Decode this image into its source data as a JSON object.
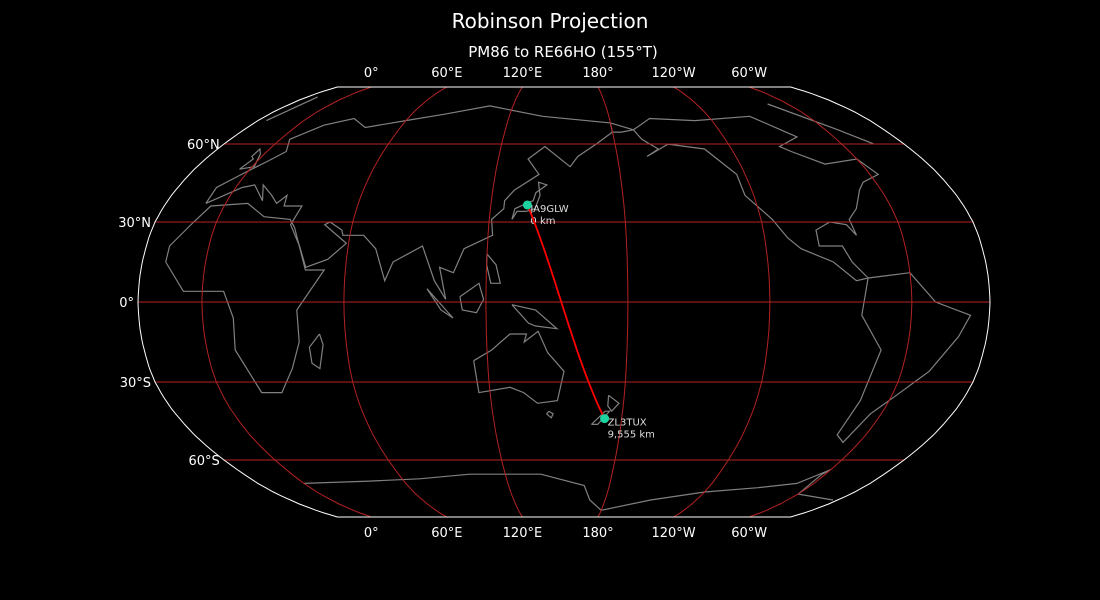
{
  "title": "Robinson Projection",
  "subtitle": "PM86 to RE66HO (155°T)",
  "colors": {
    "background": "#000000",
    "gridlines": "#b22222",
    "coastline": "#808080",
    "border": "#ffffff",
    "path": "#ff0000",
    "marker": "#1dd3a0"
  },
  "central_longitude": 153,
  "lon_ticks": [
    {
      "lon": 0,
      "label": "0°"
    },
    {
      "lon": 60,
      "label": "60°E"
    },
    {
      "lon": 120,
      "label": "120°E"
    },
    {
      "lon": 180,
      "label": "180°"
    },
    {
      "lon": 240,
      "label": "120°W"
    },
    {
      "lon": 300,
      "label": "60°W"
    }
  ],
  "lat_ticks": [
    {
      "lat": 60,
      "label": "60°N"
    },
    {
      "lat": 30,
      "label": "30°N"
    },
    {
      "lat": 0,
      "label": "0°"
    },
    {
      "lat": -30,
      "label": "30°S"
    },
    {
      "lat": -60,
      "label": "60°S"
    }
  ],
  "points": [
    {
      "call": "JA9GLW",
      "distance": "0 km",
      "lat": 36.4,
      "lon": 136.5
    },
    {
      "call": "ZL3TUX",
      "distance": "9,555 km",
      "lat": -43.8,
      "lon": 172.0
    }
  ]
}
